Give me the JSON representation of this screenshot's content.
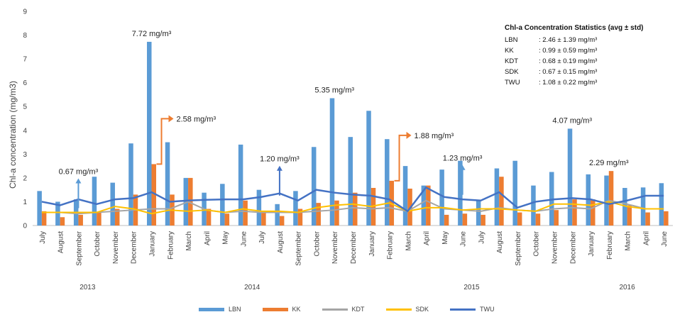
{
  "chart_data": {
    "type": "bar",
    "ylabel": "Chl-a concentration  (mg/m3)",
    "ylim": [
      0,
      9
    ],
    "yticks": [
      "0",
      "1",
      "2",
      "3",
      "4",
      "5",
      "6",
      "7",
      "8",
      "9"
    ],
    "categories": [
      "July",
      "August",
      "September",
      "October",
      "November",
      "December",
      "January",
      "February",
      "March",
      "April",
      "May",
      "June",
      "July",
      "August",
      "September",
      "October",
      "November",
      "December",
      "January",
      "February",
      "March",
      "April",
      "May",
      "June",
      "July",
      "August",
      "September",
      "October",
      "November",
      "December",
      "January",
      "February",
      "March",
      "April",
      "June"
    ],
    "years": [
      {
        "label": "2013",
        "start": 0,
        "end": 5
      },
      {
        "label": "2014",
        "start": 6,
        "end": 17
      },
      {
        "label": "2015",
        "start": 18,
        "end": 29
      },
      {
        "label": "2016",
        "start": 30,
        "end": 34
      }
    ],
    "series": [
      {
        "name": "LBN",
        "kind": "bar",
        "color": "#5B9BD5",
        "values": [
          1.45,
          1.0,
          1.1,
          2.05,
          1.8,
          3.45,
          7.72,
          3.5,
          2.0,
          1.38,
          1.75,
          3.4,
          1.5,
          0.9,
          1.45,
          3.3,
          5.35,
          3.72,
          4.82,
          3.63,
          2.5,
          1.68,
          2.35,
          2.72,
          1.08,
          2.4,
          2.72,
          1.68,
          2.25,
          4.07,
          2.15,
          2.1,
          1.58,
          1.6,
          1.78
        ]
      },
      {
        "name": "KK",
        "kind": "bar",
        "color": "#ED7D31",
        "values": [
          0.6,
          0.35,
          0.45,
          0.55,
          0.7,
          1.3,
          2.58,
          1.3,
          2.0,
          0.7,
          0.5,
          1.05,
          0.55,
          0.4,
          0.7,
          0.95,
          1.05,
          1.38,
          1.58,
          1.88,
          1.55,
          1.68,
          0.45,
          0.5,
          0.45,
          2.05,
          0.55,
          0.5,
          0.65,
          1.1,
          1.1,
          2.29,
          0.85,
          0.55,
          0.6
        ]
      },
      {
        "name": "KDT",
        "kind": "line",
        "color": "#A5A5A5",
        "values": [
          0.55,
          0.55,
          0.5,
          0.55,
          0.6,
          0.65,
          0.7,
          0.7,
          1.0,
          0.65,
          0.55,
          0.6,
          0.55,
          0.55,
          0.55,
          0.6,
          0.65,
          0.75,
          0.7,
          0.75,
          0.6,
          1.05,
          0.7,
          0.65,
          0.6,
          0.75,
          0.65,
          0.6,
          0.7,
          0.75,
          0.7,
          1.05,
          0.9,
          0.7,
          0.7
        ]
      },
      {
        "name": "SDK",
        "kind": "line",
        "color": "#FFC000",
        "values": [
          0.55,
          0.55,
          0.55,
          0.55,
          0.8,
          0.7,
          0.5,
          0.65,
          0.6,
          0.65,
          0.55,
          0.7,
          0.6,
          0.6,
          0.55,
          0.75,
          0.85,
          0.9,
          0.8,
          0.95,
          0.6,
          0.75,
          0.75,
          0.65,
          0.7,
          0.7,
          0.65,
          0.6,
          0.9,
          0.9,
          0.85,
          1.0,
          0.8,
          0.7,
          0.7
        ]
      },
      {
        "name": "TWU",
        "kind": "line",
        "color": "#4472C4",
        "values": [
          1.0,
          0.85,
          1.1,
          0.9,
          1.1,
          1.15,
          1.4,
          1.0,
          1.05,
          1.08,
          1.1,
          1.1,
          1.2,
          1.35,
          1.05,
          1.5,
          1.38,
          1.3,
          1.25,
          1.1,
          0.6,
          1.6,
          1.2,
          1.1,
          1.05,
          1.4,
          0.75,
          1.0,
          1.1,
          1.15,
          1.1,
          0.9,
          1.05,
          1.25,
          1.25
        ]
      }
    ],
    "annotations": [
      {
        "text": "0.67 mg/m³",
        "index": 2,
        "value": 0.67,
        "kind": "arrow-up",
        "color": "#5B9BD5"
      },
      {
        "text": "7.72 mg/m³",
        "index": 6,
        "value": 7.72,
        "kind": "label"
      },
      {
        "text": "2.58 mg/m³",
        "index": 6,
        "value": 2.58,
        "kind": "arrow-right",
        "color": "#ED7D31"
      },
      {
        "text": "1.20 mg/m³",
        "index": 13,
        "value": 1.2,
        "kind": "arrow-up",
        "color": "#4472C4"
      },
      {
        "text": "5.35 mg/m³",
        "index": 16,
        "value": 5.35,
        "kind": "label"
      },
      {
        "text": "1.88 mg/m³",
        "index": 19,
        "value": 1.88,
        "kind": "arrow-right",
        "color": "#ED7D31"
      },
      {
        "text": "1.23 mg/m³",
        "index": 23,
        "value": 1.23,
        "kind": "arrow-up",
        "color": "#5B9BD5"
      },
      {
        "text": "4.07 mg/m³",
        "index": 29,
        "value": 4.07,
        "kind": "label"
      },
      {
        "text": "2.29 mg/m³",
        "index": 31,
        "value": 2.29,
        "kind": "label"
      }
    ],
    "legend_position": "bottom",
    "grid": false
  },
  "stats": {
    "title": "Chl-a  Concentration Statistics (avg ± std)",
    "rows": [
      {
        "code": "LBN",
        "value": ": 2.46 ± 1.39 mg/m³"
      },
      {
        "code": "KK",
        "value": ": 0.99 ± 0.59 mg/m³"
      },
      {
        "code": "KDT",
        "value": ": 0.68 ± 0.19 mg/m³"
      },
      {
        "code": "SDK",
        "value": ": 0.67 ± 0.15 mg/m³"
      },
      {
        "code": "TWU",
        "value": ": 1.08 ± 0.22 mg/m³"
      }
    ]
  }
}
